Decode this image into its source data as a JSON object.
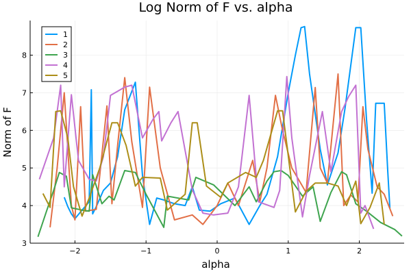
{
  "chart_data": {
    "type": "line",
    "title": "Log Norm of F vs. alpha",
    "xlabel": "alpha",
    "ylabel": "Norm of F",
    "xlim": [
      -2.63,
      2.63
    ],
    "ylim": [
      3,
      8.92
    ],
    "xticks": [
      -2,
      -1,
      0,
      1,
      2
    ],
    "yticks": [
      3,
      4,
      5,
      6,
      7,
      8
    ],
    "grid": true,
    "legend_position": "top-left",
    "series": [
      {
        "name": "1",
        "color": "#009AFA",
        "points": [
          [
            -2.15,
            4.22
          ],
          [
            -2.1,
            3.97
          ],
          [
            -2.05,
            3.78
          ],
          [
            -2.0,
            3.65
          ],
          [
            -1.9,
            3.88
          ],
          [
            -1.8,
            4.1
          ],
          [
            -1.77,
            7.08
          ],
          [
            -1.75,
            3.78
          ],
          [
            -1.7,
            3.97
          ],
          [
            -1.6,
            4.4
          ],
          [
            -1.5,
            4.6
          ],
          [
            -1.4,
            5.3
          ],
          [
            -1.3,
            6.55
          ],
          [
            -1.15,
            7.28
          ],
          [
            -1.05,
            4.8
          ],
          [
            -0.95,
            3.5
          ],
          [
            -0.85,
            4.2
          ],
          [
            -0.75,
            4.15
          ],
          [
            -0.6,
            4.05
          ],
          [
            -0.45,
            4.0
          ],
          [
            -0.35,
            4.5
          ],
          [
            -0.25,
            3.88
          ],
          [
            -0.1,
            3.85
          ],
          [
            0.05,
            4.05
          ],
          [
            0.25,
            4.2
          ],
          [
            0.45,
            3.5
          ],
          [
            0.6,
            4.0
          ],
          [
            0.7,
            4.3
          ],
          [
            0.85,
            5.3
          ],
          [
            1.0,
            7.0
          ],
          [
            1.1,
            8.0
          ],
          [
            1.18,
            8.73
          ],
          [
            1.23,
            8.76
          ],
          [
            1.3,
            7.5
          ],
          [
            1.45,
            5.5
          ],
          [
            1.55,
            4.55
          ],
          [
            1.7,
            5.4
          ],
          [
            1.8,
            6.6
          ],
          [
            1.95,
            8.73
          ],
          [
            2.02,
            8.73
          ],
          [
            2.1,
            6.3
          ],
          [
            2.18,
            4.33
          ],
          [
            2.23,
            6.72
          ],
          [
            2.35,
            6.72
          ],
          [
            2.4,
            4.9
          ],
          [
            2.43,
            3.92
          ]
        ]
      },
      {
        "name": "2",
        "color": "#E26F46",
        "points": [
          [
            -2.35,
            3.42
          ],
          [
            -2.25,
            5.0
          ],
          [
            -2.15,
            7.0
          ],
          [
            -2.05,
            4.0
          ],
          [
            -2.0,
            3.62
          ],
          [
            -1.92,
            6.63
          ],
          [
            -1.85,
            3.85
          ],
          [
            -1.7,
            3.9
          ],
          [
            -1.55,
            6.65
          ],
          [
            -1.48,
            4.05
          ],
          [
            -1.4,
            5.6
          ],
          [
            -1.3,
            7.4
          ],
          [
            -1.2,
            5.7
          ],
          [
            -1.05,
            3.95
          ],
          [
            -0.95,
            7.15
          ],
          [
            -0.8,
            5.0
          ],
          [
            -0.6,
            3.62
          ],
          [
            -0.35,
            3.75
          ],
          [
            -0.2,
            3.5
          ],
          [
            0.0,
            4.0
          ],
          [
            0.15,
            4.6
          ],
          [
            0.3,
            4.0
          ],
          [
            0.5,
            5.2
          ],
          [
            0.6,
            4.1
          ],
          [
            0.7,
            5.0
          ],
          [
            0.82,
            6.93
          ],
          [
            0.92,
            6.0
          ],
          [
            1.05,
            5.0
          ],
          [
            1.25,
            4.35
          ],
          [
            1.38,
            7.14
          ],
          [
            1.45,
            5.0
          ],
          [
            1.55,
            4.6
          ],
          [
            1.7,
            7.5
          ],
          [
            1.78,
            4.0
          ],
          [
            1.88,
            4.28
          ],
          [
            1.98,
            4.1
          ],
          [
            2.05,
            6.63
          ],
          [
            2.12,
            5.5
          ],
          [
            2.25,
            4.5
          ],
          [
            2.35,
            4.3
          ],
          [
            2.47,
            3.72
          ]
        ]
      },
      {
        "name": "3",
        "color": "#3EA44E",
        "points": [
          [
            -2.52,
            3.17
          ],
          [
            -2.4,
            3.85
          ],
          [
            -2.3,
            4.4
          ],
          [
            -2.22,
            4.88
          ],
          [
            -2.12,
            4.78
          ],
          [
            -2.05,
            3.94
          ],
          [
            -1.9,
            3.88
          ],
          [
            -1.8,
            3.85
          ],
          [
            -1.75,
            4.82
          ],
          [
            -1.62,
            4.05
          ],
          [
            -1.52,
            4.25
          ],
          [
            -1.45,
            4.15
          ],
          [
            -1.3,
            4.93
          ],
          [
            -1.15,
            4.88
          ],
          [
            -1.0,
            4.3
          ],
          [
            -0.75,
            3.42
          ],
          [
            -0.7,
            4.25
          ],
          [
            -0.4,
            4.15
          ],
          [
            -0.3,
            4.75
          ],
          [
            -0.05,
            4.55
          ],
          [
            0.25,
            4.0
          ],
          [
            0.45,
            4.5
          ],
          [
            0.55,
            4.1
          ],
          [
            0.7,
            4.65
          ],
          [
            0.8,
            4.9
          ],
          [
            0.9,
            4.93
          ],
          [
            1.0,
            4.8
          ],
          [
            1.2,
            4.25
          ],
          [
            1.35,
            4.5
          ],
          [
            1.45,
            3.58
          ],
          [
            1.6,
            4.35
          ],
          [
            1.75,
            4.9
          ],
          [
            1.82,
            4.82
          ],
          [
            1.95,
            4.05
          ],
          [
            2.1,
            3.85
          ],
          [
            2.3,
            3.55
          ],
          [
            2.5,
            3.36
          ],
          [
            2.6,
            3.19
          ]
        ]
      },
      {
        "name": "4",
        "color": "#C271D2",
        "points": [
          [
            -2.5,
            4.7
          ],
          [
            -2.3,
            5.8
          ],
          [
            -2.2,
            7.2
          ],
          [
            -2.15,
            4.5
          ],
          [
            -2.05,
            6.95
          ],
          [
            -1.95,
            5.2
          ],
          [
            -1.8,
            4.7
          ],
          [
            -1.7,
            4.65
          ],
          [
            -1.6,
            5.3
          ],
          [
            -1.5,
            6.93
          ],
          [
            -1.3,
            7.15
          ],
          [
            -1.2,
            7.2
          ],
          [
            -1.05,
            5.8
          ],
          [
            -0.9,
            6.3
          ],
          [
            -0.82,
            6.5
          ],
          [
            -0.78,
            5.72
          ],
          [
            -0.65,
            6.2
          ],
          [
            -0.55,
            6.5
          ],
          [
            -0.35,
            4.42
          ],
          [
            -0.2,
            3.8
          ],
          [
            -0.05,
            3.75
          ],
          [
            0.15,
            3.8
          ],
          [
            0.3,
            4.5
          ],
          [
            0.45,
            6.93
          ],
          [
            0.58,
            4.1
          ],
          [
            0.8,
            3.95
          ],
          [
            0.88,
            4.4
          ],
          [
            0.98,
            7.43
          ],
          [
            1.05,
            5.8
          ],
          [
            1.2,
            3.7
          ],
          [
            1.3,
            4.8
          ],
          [
            1.48,
            6.5
          ],
          [
            1.6,
            4.9
          ],
          [
            1.75,
            6.5
          ],
          [
            1.85,
            6.9
          ],
          [
            1.95,
            7.2
          ],
          [
            2.02,
            3.8
          ],
          [
            2.08,
            4.0
          ],
          [
            2.2,
            3.38
          ]
        ]
      },
      {
        "name": "5",
        "color": "#AC8E18",
        "points": [
          [
            -2.45,
            4.32
          ],
          [
            -2.35,
            3.95
          ],
          [
            -2.27,
            6.5
          ],
          [
            -2.2,
            6.52
          ],
          [
            -2.1,
            5.8
          ],
          [
            -2.02,
            4.5
          ],
          [
            -1.9,
            3.72
          ],
          [
            -1.8,
            4.2
          ],
          [
            -1.65,
            5.0
          ],
          [
            -1.48,
            6.2
          ],
          [
            -1.4,
            6.2
          ],
          [
            -1.28,
            5.6
          ],
          [
            -1.15,
            4.52
          ],
          [
            -1.05,
            4.75
          ],
          [
            -0.8,
            4.73
          ],
          [
            -0.7,
            3.88
          ],
          [
            -0.45,
            4.3
          ],
          [
            -0.35,
            6.2
          ],
          [
            -0.28,
            6.2
          ],
          [
            -0.15,
            4.52
          ],
          [
            0.05,
            4.22
          ],
          [
            0.15,
            4.6
          ],
          [
            0.4,
            4.88
          ],
          [
            0.55,
            4.75
          ],
          [
            0.65,
            5.2
          ],
          [
            0.85,
            6.52
          ],
          [
            0.92,
            6.52
          ],
          [
            1.1,
            3.83
          ],
          [
            1.25,
            4.38
          ],
          [
            1.38,
            4.6
          ],
          [
            1.55,
            4.6
          ],
          [
            1.7,
            4.52
          ],
          [
            1.82,
            4.0
          ],
          [
            1.95,
            4.65
          ],
          [
            2.02,
            3.52
          ],
          [
            2.15,
            3.95
          ],
          [
            2.28,
            4.6
          ],
          [
            2.35,
            3.5
          ]
        ]
      }
    ]
  }
}
